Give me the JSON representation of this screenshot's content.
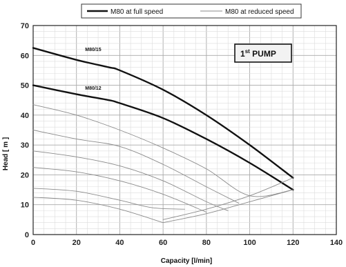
{
  "chart_data": {
    "type": "line",
    "xlabel": "Capacity  [l/min]",
    "ylabel": "Head  [ m ]",
    "xlim": [
      0,
      140
    ],
    "ylim": [
      0,
      70
    ],
    "xticks": [
      0,
      20,
      40,
      60,
      80,
      100,
      120,
      140
    ],
    "yticks": [
      0,
      10,
      20,
      30,
      40,
      50,
      60,
      70
    ],
    "grid": true,
    "legend_position": "top",
    "legend": [
      {
        "label": "M80 at full speed",
        "style": "thick",
        "color": "#111111"
      },
      {
        "label": "M80 at reduced speed",
        "style": "thin",
        "color": "#8a8a8a"
      }
    ],
    "badge": {
      "num": "1",
      "sup": "st",
      "text": " PUMP"
    },
    "series": [
      {
        "name": "M80/15",
        "label_at": [
          24,
          61.5
        ],
        "style": "thick",
        "x": [
          0,
          20,
          35,
          40,
          60,
          80,
          100,
          120
        ],
        "y": [
          62.5,
          58.5,
          56,
          55,
          48.5,
          40,
          30,
          19
        ]
      },
      {
        "name": "M80/12",
        "label_at": [
          24,
          48.5
        ],
        "style": "thick",
        "x": [
          0,
          20,
          35,
          40,
          60,
          80,
          100,
          120
        ],
        "y": [
          50,
          47,
          45,
          44,
          39,
          32,
          24,
          15
        ]
      },
      {
        "style": "thin",
        "x": [
          0,
          20,
          40,
          60,
          80,
          100,
          120
        ],
        "y": [
          43.5,
          40,
          35,
          29,
          22,
          13,
          15
        ]
      },
      {
        "style": "thin",
        "x": [
          0,
          20,
          40,
          60,
          80,
          95
        ],
        "y": [
          35,
          32,
          29.5,
          23.5,
          16,
          10.5
        ]
      },
      {
        "style": "thin",
        "x": [
          0,
          20,
          40,
          60,
          80,
          90
        ],
        "y": [
          28,
          26,
          23,
          18,
          11,
          8
        ]
      },
      {
        "style": "thin",
        "x": [
          0,
          20,
          40,
          60,
          80
        ],
        "y": [
          22.5,
          21,
          18,
          13.5,
          7.5
        ]
      },
      {
        "style": "thin",
        "x": [
          0,
          20,
          40,
          55,
          70
        ],
        "y": [
          15.5,
          14.5,
          11.5,
          9,
          8.5
        ]
      },
      {
        "style": "thin",
        "x": [
          0,
          20,
          40,
          60
        ],
        "y": [
          12.5,
          11.5,
          8.5,
          4
        ]
      },
      {
        "style": "thin",
        "x": [
          60,
          80,
          100,
          120
        ],
        "y": [
          4,
          7,
          11,
          15
        ]
      },
      {
        "style": "thin",
        "x": [
          60,
          80,
          100,
          120
        ],
        "y": [
          5,
          8.5,
          13,
          19
        ]
      }
    ]
  }
}
